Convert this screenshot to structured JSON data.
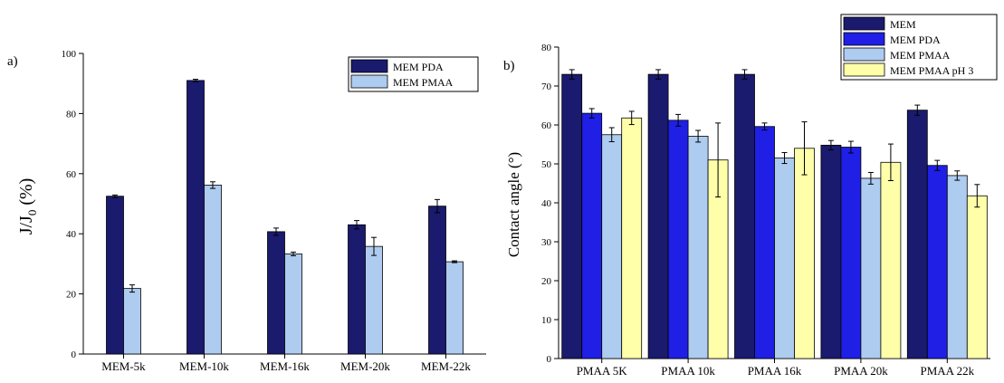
{
  "chart_data": [
    {
      "type": "bar",
      "panel_label": "a)",
      "title": "",
      "xlabel": "",
      "ylabel_main": "J/J",
      "ylabel_sub": "0",
      "ylabel_unit": " (%)",
      "ylim": [
        0,
        100
      ],
      "yticks": [
        0,
        20,
        40,
        60,
        80,
        100
      ],
      "grid": false,
      "legend_position": "top-right",
      "categories": [
        "MEM-5k",
        "MEM-10k",
        "MEM-16k",
        "MEM-20k",
        "MEM-22k"
      ],
      "series": [
        {
          "name": "MEM PDA",
          "color": "#1a1a6e",
          "values": [
            52.5,
            91,
            40.7,
            43,
            49.2
          ],
          "errors": [
            0.4,
            0.4,
            1.2,
            1.4,
            2.2
          ]
        },
        {
          "name": "MEM PMAA",
          "color": "#aecbf0",
          "values": [
            21.8,
            56.2,
            33.3,
            35.8,
            30.7
          ],
          "errors": [
            1.2,
            1.1,
            0.6,
            3.0,
            0.3
          ]
        }
      ]
    },
    {
      "type": "bar",
      "panel_label": "b)",
      "title": "",
      "xlabel": "",
      "ylabel": "Contact angle (°)",
      "ylim": [
        0,
        80
      ],
      "yticks": [
        0,
        10,
        20,
        30,
        40,
        50,
        60,
        70,
        80
      ],
      "grid": false,
      "legend_position": "top-right (outside plot)",
      "categories": [
        "PMAA 5K",
        "PMAA 10k",
        "PMAA 16k",
        "PMAA 20k",
        "PMAA 22k"
      ],
      "series": [
        {
          "name": "MEM",
          "color": "#1a1a6e",
          "values": [
            73,
            73,
            73,
            54.8,
            63.8
          ],
          "errors": [
            1.2,
            1.2,
            1.2,
            1.2,
            1.3
          ]
        },
        {
          "name": "MEM PDA",
          "color": "#1f1fe6",
          "values": [
            63,
            61.2,
            59.6,
            54.3,
            49.6
          ],
          "errors": [
            1.2,
            1.5,
            0.9,
            1.5,
            1.3
          ]
        },
        {
          "name": "MEM PMAA",
          "color": "#aecbf0",
          "values": [
            57.5,
            57.1,
            51.5,
            46.3,
            47
          ],
          "errors": [
            1.8,
            1.5,
            1.4,
            1.5,
            1.2
          ]
        },
        {
          "name": "MEM PMAA pH 3",
          "color": "#ffffaa",
          "values": [
            61.8,
            51,
            54,
            50.4,
            41.8
          ],
          "errors": [
            1.7,
            9.5,
            6.8,
            4.7,
            2.9
          ]
        }
      ]
    }
  ]
}
